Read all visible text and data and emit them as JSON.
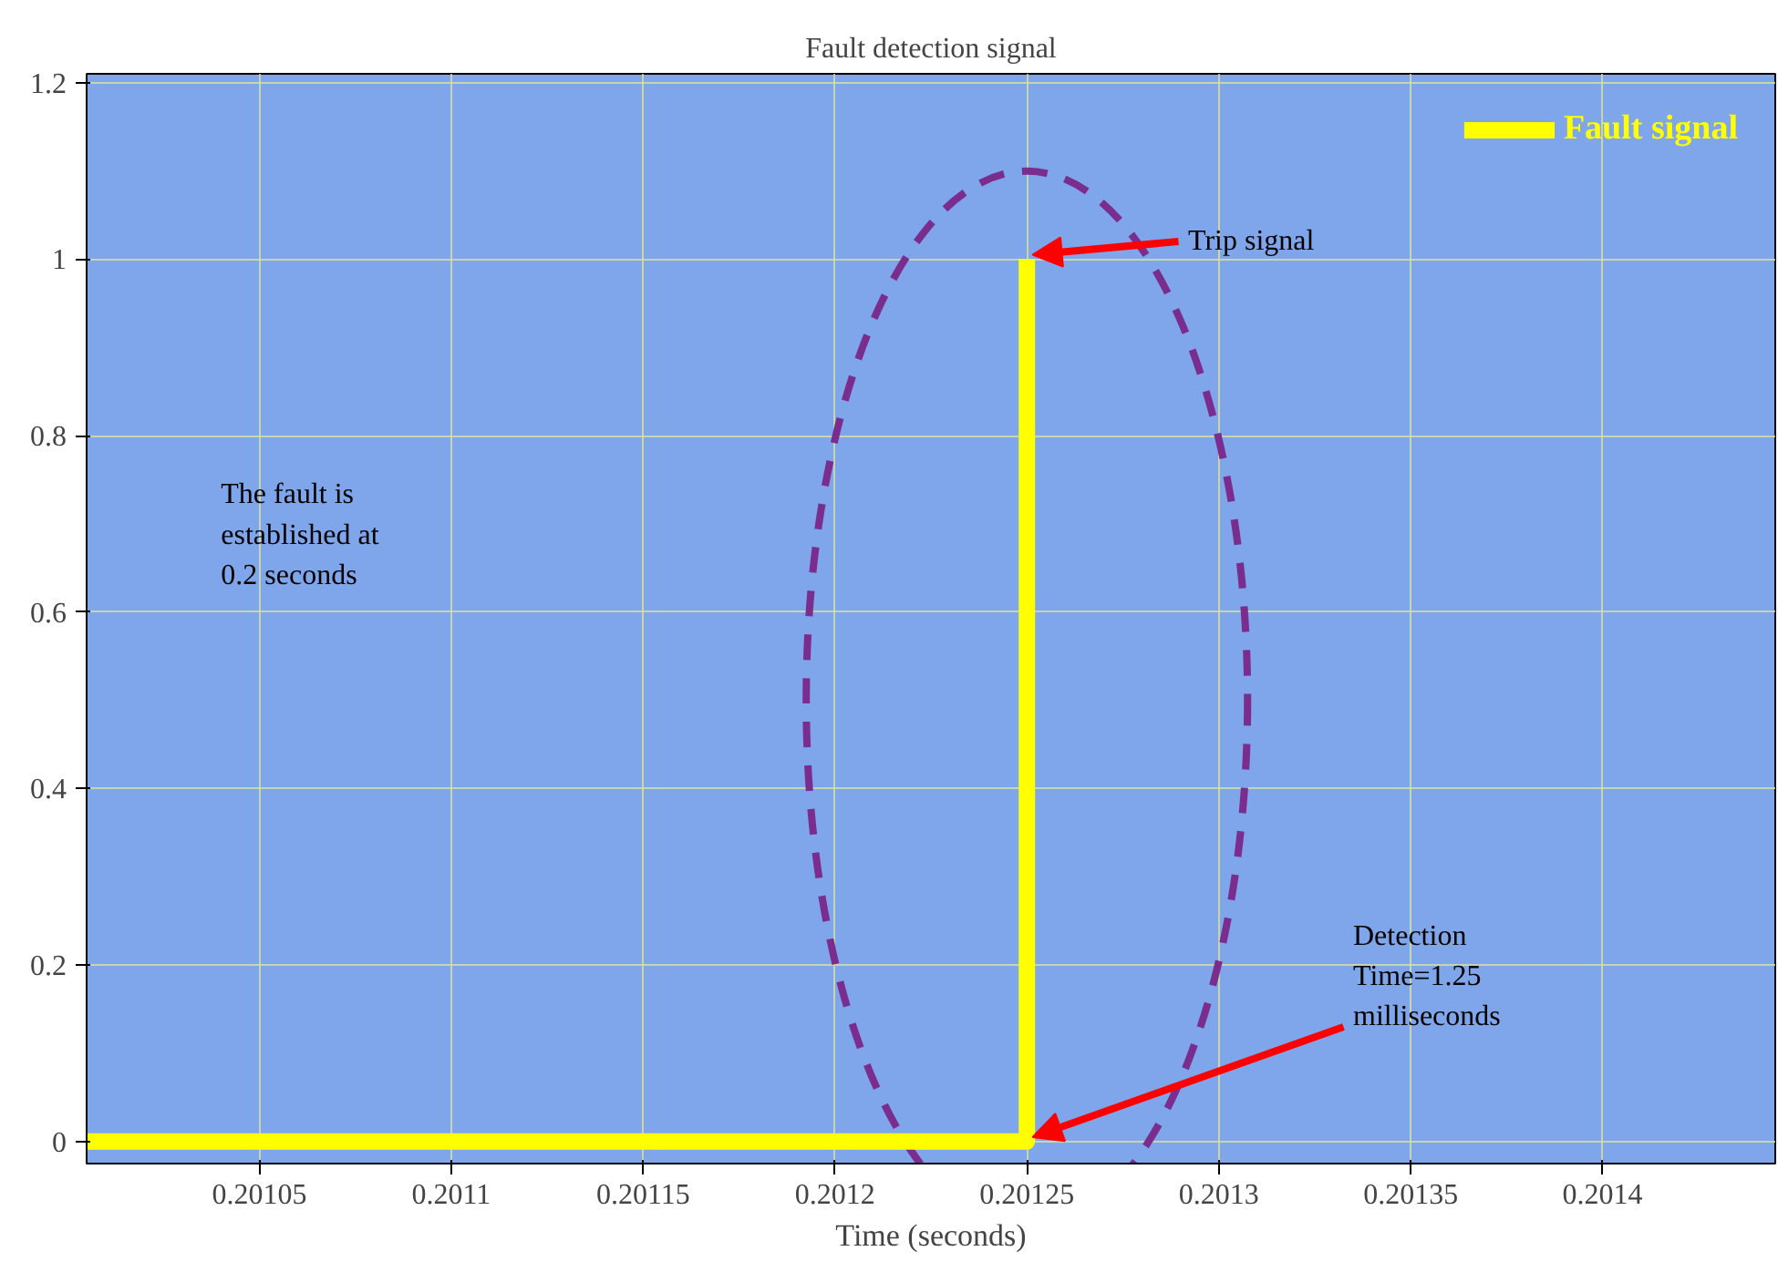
{
  "chart_data": {
    "type": "step",
    "title": "Fault detection signal",
    "xlabel": "Time (seconds)",
    "x": [
      0.201005,
      0.20125
    ],
    "series": [
      {
        "name": "Fault signal",
        "color": "#ffff00",
        "values": [
          0,
          1
        ]
      }
    ],
    "xlim": [
      0.201005,
      0.201445
    ],
    "xticks": [
      0.20105,
      0.2011,
      0.20115,
      0.2012,
      0.20125,
      0.2013,
      0.20135,
      0.2014
    ],
    "ylim": [
      -0.025,
      1.21
    ],
    "yticks": [
      0,
      0.2,
      0.4,
      0.6,
      0.8,
      1,
      1.2
    ],
    "grid": true,
    "legend": "top right",
    "annotations": [
      {
        "text": "Trip signal",
        "x": 0.20125,
        "y": 1
      },
      {
        "text": "Detection\nTime=1.25\nmilliseconds",
        "x": 0.20125,
        "y": 0
      },
      "The fault is\nestablished at\n0.2 seconds"
    ]
  }
}
